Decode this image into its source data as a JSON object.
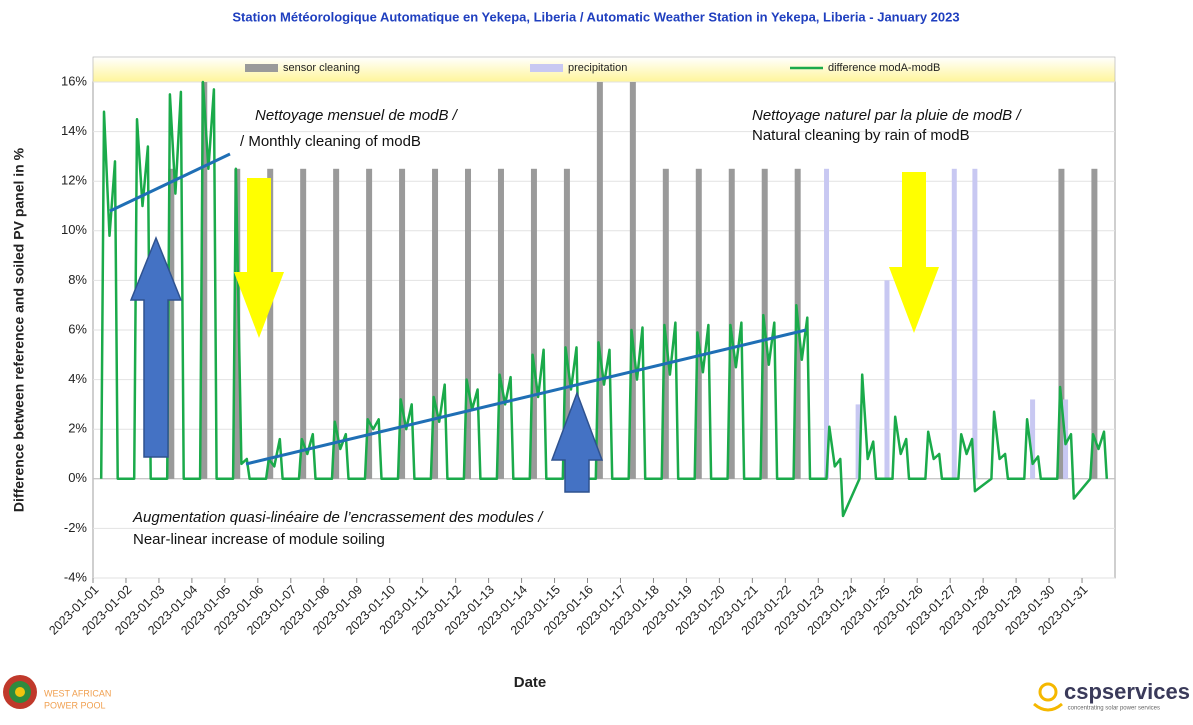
{
  "chart_data": {
    "type": "line",
    "title": "Station Météorologique Automatique en Yekepa, Liberia / Automatic Weather Station in Yekepa, Liberia  -  January 2023",
    "y_label": "Difference between reference and soiled PV panel in %",
    "x_label": "Date",
    "xlim": [
      "2023-01-01T00:00",
      "2023-02-01T00:00"
    ],
    "ylim": [
      -4,
      16
    ],
    "yticks": [
      {
        "value": -4,
        "label": "-4%"
      },
      {
        "value": -2,
        "label": "-2%"
      },
      {
        "value": 0,
        "label": "0%"
      },
      {
        "value": 2,
        "label": "2%"
      },
      {
        "value": 4,
        "label": "4%"
      },
      {
        "value": 6,
        "label": "6%"
      },
      {
        "value": 8,
        "label": "8%"
      },
      {
        "value": 10,
        "label": "10%"
      },
      {
        "value": 12,
        "label": "12%"
      },
      {
        "value": 14,
        "label": "14%"
      },
      {
        "value": 16,
        "label": "16%"
      }
    ],
    "xticks": [
      "2023-01-01",
      "2023-01-02",
      "2023-01-03",
      "2023-01-04",
      "2023-01-05",
      "2023-01-06",
      "2023-01-07",
      "2023-01-08",
      "2023-01-09",
      "2023-01-10",
      "2023-01-11",
      "2023-01-12",
      "2023-01-13",
      "2023-01-14",
      "2023-01-15",
      "2023-01-16",
      "2023-01-17",
      "2023-01-18",
      "2023-01-19",
      "2023-01-20",
      "2023-01-21",
      "2023-01-22",
      "2023-01-23",
      "2023-01-24",
      "2023-01-25",
      "2023-01-26",
      "2023-01-27",
      "2023-01-28",
      "2023-01-29",
      "2023-01-30",
      "2023-01-31"
    ],
    "grid": true,
    "legend": "top",
    "series": [
      {
        "name": "sensor cleaning",
        "type": "bar",
        "color": "#9a9a9a",
        "x": [
          "2023-01-03T09:00",
          "2023-01-04T09:00",
          "2023-01-05T09:00",
          "2023-01-06T09:00",
          "2023-01-07T09:00",
          "2023-01-08T09:00",
          "2023-01-09T09:00",
          "2023-01-10T09:00",
          "2023-01-11T09:00",
          "2023-01-12T09:00",
          "2023-01-13T09:00",
          "2023-01-14T09:00",
          "2023-01-15T09:00",
          "2023-01-16T09:00",
          "2023-01-17T09:00",
          "2023-01-18T09:00",
          "2023-01-19T09:00",
          "2023-01-20T09:00",
          "2023-01-21T09:00",
          "2023-01-22T09:00",
          "2023-01-30T09:00",
          "2023-01-31T09:00"
        ],
        "values": [
          12.5,
          16,
          12.5,
          12.5,
          12.5,
          12.5,
          12.5,
          12.5,
          12.5,
          12.5,
          12.5,
          12.5,
          12.5,
          16,
          16,
          12.5,
          12.5,
          12.5,
          12.5,
          12.5,
          12.5,
          12.5
        ]
      },
      {
        "name": "precipitation",
        "type": "bar",
        "color": "#c8c8f2",
        "x": [
          "2023-01-23T06:00",
          "2023-01-24T05:00",
          "2023-01-25T02:00",
          "2023-01-27T03:00",
          "2023-01-27T18:00",
          "2023-01-29T12:00",
          "2023-01-30T12:00"
        ],
        "values": [
          12.5,
          3,
          8,
          12.5,
          12.5,
          3.2,
          3.2
        ]
      },
      {
        "name": "difference modA-modB",
        "type": "line",
        "color": "#1aaa4a",
        "x": [
          "2023-01-01T06:00",
          "2023-01-01T08:00",
          "2023-01-01T12:00",
          "2023-01-01T16:00",
          "2023-01-01T18:00",
          "2023-01-02T06:00",
          "2023-01-02T08:00",
          "2023-01-02T12:00",
          "2023-01-02T16:00",
          "2023-01-02T18:00",
          "2023-01-03T06:00",
          "2023-01-03T08:00",
          "2023-01-03T12:00",
          "2023-01-03T16:00",
          "2023-01-03T18:00",
          "2023-01-04T06:00",
          "2023-01-04T08:00",
          "2023-01-04T12:00",
          "2023-01-04T16:00",
          "2023-01-04T18:00",
          "2023-01-05T06:00",
          "2023-01-05T08:00",
          "2023-01-05T12:00",
          "2023-01-05T16:00",
          "2023-01-05T18:00",
          "2023-01-06T06:00",
          "2023-01-06T08:00",
          "2023-01-06T12:00",
          "2023-01-06T16:00",
          "2023-01-06T18:00",
          "2023-01-07T06:00",
          "2023-01-07T08:00",
          "2023-01-07T12:00",
          "2023-01-07T16:00",
          "2023-01-07T18:00",
          "2023-01-08T06:00",
          "2023-01-08T08:00",
          "2023-01-08T12:00",
          "2023-01-08T16:00",
          "2023-01-08T18:00",
          "2023-01-09T06:00",
          "2023-01-09T08:00",
          "2023-01-09T12:00",
          "2023-01-09T16:00",
          "2023-01-09T18:00",
          "2023-01-10T06:00",
          "2023-01-10T08:00",
          "2023-01-10T12:00",
          "2023-01-10T16:00",
          "2023-01-10T18:00",
          "2023-01-11T06:00",
          "2023-01-11T08:00",
          "2023-01-11T12:00",
          "2023-01-11T16:00",
          "2023-01-11T18:00",
          "2023-01-12T06:00",
          "2023-01-12T08:00",
          "2023-01-12T12:00",
          "2023-01-12T16:00",
          "2023-01-12T18:00",
          "2023-01-13T06:00",
          "2023-01-13T08:00",
          "2023-01-13T12:00",
          "2023-01-13T16:00",
          "2023-01-13T18:00",
          "2023-01-14T06:00",
          "2023-01-14T08:00",
          "2023-01-14T12:00",
          "2023-01-14T16:00",
          "2023-01-14T18:00",
          "2023-01-15T06:00",
          "2023-01-15T08:00",
          "2023-01-15T12:00",
          "2023-01-15T16:00",
          "2023-01-15T18:00",
          "2023-01-16T06:00",
          "2023-01-16T08:00",
          "2023-01-16T12:00",
          "2023-01-16T16:00",
          "2023-01-16T18:00",
          "2023-01-17T06:00",
          "2023-01-17T08:00",
          "2023-01-17T12:00",
          "2023-01-17T16:00",
          "2023-01-17T18:00",
          "2023-01-18T06:00",
          "2023-01-18T08:00",
          "2023-01-18T12:00",
          "2023-01-18T16:00",
          "2023-01-18T18:00",
          "2023-01-19T06:00",
          "2023-01-19T08:00",
          "2023-01-19T12:00",
          "2023-01-19T16:00",
          "2023-01-19T18:00",
          "2023-01-20T06:00",
          "2023-01-20T08:00",
          "2023-01-20T12:00",
          "2023-01-20T16:00",
          "2023-01-20T18:00",
          "2023-01-21T06:00",
          "2023-01-21T08:00",
          "2023-01-21T12:00",
          "2023-01-21T16:00",
          "2023-01-21T18:00",
          "2023-01-22T06:00",
          "2023-01-22T08:00",
          "2023-01-22T12:00",
          "2023-01-22T16:00",
          "2023-01-22T18:00",
          "2023-01-23T06:00",
          "2023-01-23T08:00",
          "2023-01-23T12:00",
          "2023-01-23T16:00",
          "2023-01-23T18:00",
          "2023-01-24T06:00",
          "2023-01-24T08:00",
          "2023-01-24T12:00",
          "2023-01-24T16:00",
          "2023-01-24T18:00",
          "2023-01-25T06:00",
          "2023-01-25T08:00",
          "2023-01-25T12:00",
          "2023-01-25T16:00",
          "2023-01-25T18:00",
          "2023-01-26T06:00",
          "2023-01-26T08:00",
          "2023-01-26T12:00",
          "2023-01-26T16:00",
          "2023-01-26T18:00",
          "2023-01-27T06:00",
          "2023-01-27T08:00",
          "2023-01-27T12:00",
          "2023-01-27T16:00",
          "2023-01-27T18:00",
          "2023-01-28T06:00",
          "2023-01-28T08:00",
          "2023-01-28T12:00",
          "2023-01-28T16:00",
          "2023-01-28T18:00",
          "2023-01-29T06:00",
          "2023-01-29T08:00",
          "2023-01-29T12:00",
          "2023-01-29T16:00",
          "2023-01-29T18:00",
          "2023-01-30T06:00",
          "2023-01-30T08:00",
          "2023-01-30T12:00",
          "2023-01-30T16:00",
          "2023-01-30T18:00",
          "2023-01-31T06:00",
          "2023-01-31T08:00",
          "2023-01-31T12:00",
          "2023-01-31T16:00",
          "2023-01-31T18:00"
        ],
        "values": [
          0,
          14.8,
          9.8,
          12.8,
          0,
          0,
          14.5,
          11,
          13.4,
          0,
          0,
          15.5,
          11.5,
          15.6,
          0,
          0,
          16,
          12.5,
          15.7,
          0,
          0,
          12.5,
          0.6,
          0.8,
          0,
          0,
          0.8,
          0.5,
          1.6,
          0,
          0,
          1.6,
          1,
          1.8,
          0,
          0,
          2.3,
          1.2,
          1.8,
          0,
          0,
          2.4,
          2,
          2.4,
          0,
          0,
          3.2,
          2,
          3,
          0,
          0,
          3.3,
          2.3,
          3.8,
          0,
          0,
          4,
          2.8,
          3.6,
          0,
          0,
          4.2,
          3,
          4.1,
          0,
          0,
          5,
          3.3,
          5.2,
          0,
          0,
          5.3,
          3.6,
          5.3,
          0,
          0,
          5.5,
          3.8,
          5.2,
          0,
          0,
          6,
          4,
          6.1,
          0,
          0,
          6.2,
          4.2,
          6.3,
          0,
          0,
          5.9,
          4.3,
          6.2,
          0,
          0,
          6.2,
          4.5,
          6.3,
          0,
          0,
          6.6,
          4.6,
          6.3,
          0,
          0,
          7,
          4.8,
          6.5,
          0,
          0,
          2.1,
          0.5,
          0.8,
          -1.5,
          0,
          4.2,
          0.8,
          1.5,
          0,
          0,
          2.5,
          1,
          1.6,
          0,
          0,
          1.9,
          0.8,
          1,
          0,
          0,
          1.8,
          1,
          1.6,
          -0.5,
          0,
          2.7,
          0.8,
          1,
          0,
          0,
          2.4,
          0.6,
          0.9,
          0,
          0,
          3.7,
          1.4,
          1.8,
          -0.8,
          0,
          1.8,
          1.2,
          1.9,
          0
        ]
      }
    ],
    "annotations": [
      [
        "Nettoyage mensuel de modB /",
        "/ Monthly cleaning of modB"
      ],
      [
        "Nettoyage naturel par la pluie de modB /",
        "Natural cleaning by rain of modB"
      ],
      [
        "Augmentation quasi-linéaire de l’encrassement des modules /",
        "Near-linear increase of module soiling"
      ]
    ]
  },
  "logos": {
    "left": [
      "WEST AFRICAN",
      "POWER POOL"
    ],
    "right": "cspservices",
    "right_sub": "concentrating solar power services"
  }
}
